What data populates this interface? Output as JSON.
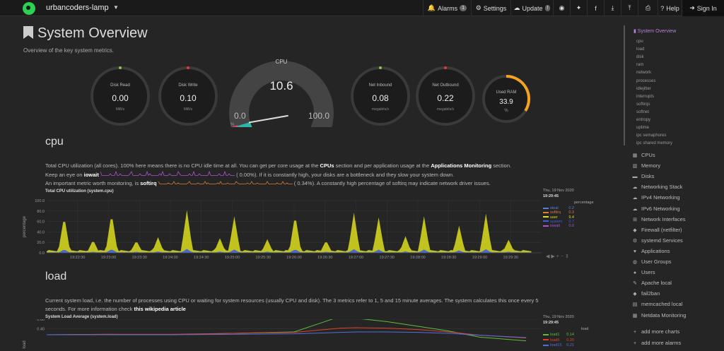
{
  "topbar": {
    "hostname": "urbancoders-lamp",
    "buttons": [
      {
        "icon": "bell-icon",
        "glyph": "🔔",
        "label": "Alarms",
        "badge": "1"
      },
      {
        "icon": "gear-icon",
        "glyph": "⚙",
        "label": "Settings",
        "badge": ""
      },
      {
        "icon": "cloud-download-icon",
        "glyph": "☁",
        "label": "Update",
        "badge": "!"
      },
      {
        "icon": "github-icon",
        "glyph": "◉",
        "label": "",
        "badge": ""
      },
      {
        "icon": "twitter-icon",
        "glyph": "✦",
        "label": "",
        "badge": ""
      },
      {
        "icon": "facebook-icon",
        "glyph": "f",
        "label": "",
        "badge": ""
      },
      {
        "icon": "download-icon",
        "glyph": "⤓",
        "label": "",
        "badge": ""
      },
      {
        "icon": "upload-icon",
        "glyph": "⤒",
        "label": "",
        "badge": ""
      },
      {
        "icon": "print-icon",
        "glyph": "⎙",
        "label": "",
        "badge": ""
      },
      {
        "icon": "help-icon",
        "glyph": "?",
        "label": "Help",
        "badge": ""
      },
      {
        "icon": "sign-in-icon",
        "glyph": "➜",
        "label": "Sign In",
        "badge": ""
      }
    ]
  },
  "page": {
    "title": "System Overview",
    "subtitle": "Overview of the key system metrics."
  },
  "gauges": {
    "disk_read": {
      "title": "Disk Read",
      "value": "0.00",
      "unit": "MiB/s"
    },
    "disk_write": {
      "title": "Disk Write",
      "value": "0.10",
      "unit": "MiB/s"
    },
    "cpu": {
      "title": "CPU",
      "value": "10.6",
      "min": "0.0",
      "max": "100.0",
      "unit": "%",
      "fraction": 0.106
    },
    "net_inbound": {
      "title": "Net Inbound",
      "value": "0.08",
      "unit": "megabits/s"
    },
    "net_outbound": {
      "title": "Net Outbound",
      "value": "0.22",
      "unit": "megabits/s"
    },
    "used_ram": {
      "title": "Used RAM",
      "value": "33.9",
      "unit": "%",
      "fraction": 0.339
    }
  },
  "cpu_section": {
    "title": "cpu",
    "line1_pre": "Total CPU utilization (all cores). 100% here means there is no CPU idle time at all. You can get per core usage at the ",
    "line1_link1": "CPUs",
    "line1_mid": " section and per application usage at the ",
    "line1_link2": "Applications Monitoring",
    "line1_post": " section.",
    "line2_pre": "Keep an eye on ",
    "line2_bold": "iowait",
    "line2_val": "0.00%). If it is constantly high, your disks are a bottleneck and they slow your system down.",
    "line3_pre": "An important metric worth monitoring, is ",
    "line3_bold": "softirq",
    "line3_val": "0.34%). A constantly high percentage of softirq may indicate network driver issues.",
    "chart_title": "Total CPU utilization (system.cpu)",
    "date": "Thu, 19 Nov 2020",
    "time": "19:29:45",
    "units": "percentage",
    "ylabel": "percentage",
    "legend": [
      {
        "name": "steal",
        "value": "0.2",
        "color": "#5b7fe0"
      },
      {
        "name": "softirq",
        "value": "0.3",
        "color": "#e07b30"
      },
      {
        "name": "user",
        "value": "9.4",
        "color": "#dede1e"
      },
      {
        "name": "system",
        "value": "0.7",
        "color": "#3f5fd8"
      },
      {
        "name": "iowait",
        "value": "0.0",
        "color": "#b24fd8"
      }
    ]
  },
  "load_section": {
    "title": "load",
    "line1": "Current system load, i.e. the number of processes using CPU or waiting for system resources (usually CPU and disk). The 3 metrics refer to 1, 5 and 15 minute averages. The system calculates this once every 5",
    "line2_pre": "seconds. For more information check ",
    "line2_link": "this wikipedia article",
    "chart_title": "System Load Average (system.load)",
    "date": "Thu, 19 Nov 2020",
    "time": "19:29:45",
    "units": "load",
    "ylabel": "load",
    "legend": [
      {
        "name": "load1",
        "value": "0.14",
        "color": "#57c13a"
      },
      {
        "name": "load5",
        "value": "0.20",
        "color": "#e0402c"
      },
      {
        "name": "load15",
        "value": "0.21",
        "color": "#4f6fe0"
      }
    ]
  },
  "chart_data": [
    {
      "type": "area",
      "title": "Total CPU utilization (system.cpu)",
      "ylabel": "percentage",
      "ylim": [
        0,
        100
      ],
      "y_ticks": [
        "100.0",
        "80.0",
        "60.0",
        "40.0",
        "20.0",
        "0.0"
      ],
      "x_ticks": [
        "19:22:30",
        "19:23:00",
        "19:23:30",
        "19:24:00",
        "19:24:30",
        "19:25:00",
        "19:25:30",
        "19:26:00",
        "19:26:30",
        "19:27:00",
        "19:27:30",
        "19:28:00",
        "19:28:30",
        "19:29:00",
        "19:29:30"
      ],
      "spikes": [
        {
          "x": "19:22:17",
          "user": 71
        },
        {
          "x": "19:22:45",
          "user": 25
        },
        {
          "x": "19:23:03",
          "user": 77
        },
        {
          "x": "19:23:27",
          "user": 24
        },
        {
          "x": "19:23:48",
          "user": 30
        },
        {
          "x": "19:24:16",
          "user": 82
        },
        {
          "x": "19:24:48",
          "user": 28
        },
        {
          "x": "19:25:02",
          "user": 70
        },
        {
          "x": "19:25:34",
          "user": 26
        },
        {
          "x": "19:26:01",
          "user": 74
        },
        {
          "x": "19:26:31",
          "user": 24
        },
        {
          "x": "19:26:58",
          "user": 77
        },
        {
          "x": "19:27:22",
          "user": 68
        },
        {
          "x": "19:27:48",
          "user": 32
        },
        {
          "x": "19:28:06",
          "user": 70
        },
        {
          "x": "19:28:40",
          "user": 52
        },
        {
          "x": "19:29:06",
          "user": 75
        },
        {
          "x": "19:29:28",
          "user": 25
        }
      ],
      "baseline_user": 3
    },
    {
      "type": "line",
      "title": "System Load Average (system.load)",
      "ylabel": "load",
      "y_ticks": [
        "0.60",
        "0.40"
      ],
      "x": [
        "19:22:00",
        "19:23:00",
        "19:24:00",
        "19:25:00",
        "19:26:00",
        "19:26:30",
        "19:26:45",
        "19:27:00",
        "19:27:30",
        "19:28:00",
        "19:28:30",
        "19:29:00",
        "19:29:45"
      ],
      "series": [
        {
          "name": "load1",
          "values": [
            0.27,
            0.28,
            0.27,
            0.3,
            0.33,
            0.55,
            0.66,
            0.62,
            0.55,
            0.45,
            0.35,
            0.22,
            0.14
          ]
        },
        {
          "name": "load5",
          "values": [
            0.27,
            0.28,
            0.28,
            0.3,
            0.32,
            0.38,
            0.41,
            0.42,
            0.41,
            0.38,
            0.33,
            0.26,
            0.2
          ]
        },
        {
          "name": "load15",
          "values": [
            0.27,
            0.27,
            0.27,
            0.28,
            0.29,
            0.31,
            0.32,
            0.33,
            0.33,
            0.32,
            0.3,
            0.26,
            0.21
          ]
        }
      ]
    }
  ],
  "sidebar": {
    "top": "System Overview",
    "sub": [
      "cpu",
      "load",
      "disk",
      "ram",
      "network",
      "processes",
      "idlejitter",
      "interrupts",
      "softirqs",
      "softnet",
      "entropy",
      "uptime",
      "ipc semaphores",
      "ipc shared memory"
    ],
    "main": [
      {
        "label": "CPUs",
        "icon": "microchip-icon",
        "glyph": "▦"
      },
      {
        "label": "Memory",
        "icon": "memory-icon",
        "glyph": "▥"
      },
      {
        "label": "Disks",
        "icon": "hdd-icon",
        "glyph": "▬"
      },
      {
        "label": "Networking Stack",
        "icon": "cloud-icon",
        "glyph": "☁"
      },
      {
        "label": "IPv4 Networking",
        "icon": "cloud-icon",
        "glyph": "☁"
      },
      {
        "label": "IPv6 Networking",
        "icon": "cloud-icon",
        "glyph": "☁"
      },
      {
        "label": "Network Interfaces",
        "icon": "sitemap-icon",
        "glyph": "⊞"
      },
      {
        "label": "Firewall (netfilter)",
        "icon": "shield-icon",
        "glyph": "◆"
      },
      {
        "label": "systemd Services",
        "icon": "cogs-icon",
        "glyph": "⚙"
      },
      {
        "label": "Applications",
        "icon": "heart-icon",
        "glyph": "♥"
      },
      {
        "label": "User Groups",
        "icon": "users-icon",
        "glyph": "◍"
      },
      {
        "label": "Users",
        "icon": "user-icon",
        "glyph": "●"
      },
      {
        "label": "Apache local",
        "icon": "feather-icon",
        "glyph": "✎"
      },
      {
        "label": "fail2ban",
        "icon": "shield-icon",
        "glyph": "◆"
      },
      {
        "label": "memcached local",
        "icon": "database-icon",
        "glyph": "▤"
      },
      {
        "label": "Netdata Monitoring",
        "icon": "chart-icon",
        "glyph": "▦"
      }
    ],
    "links": [
      {
        "label": "add more charts",
        "icon": "plus-icon",
        "glyph": "+"
      },
      {
        "label": "add more alarms",
        "icon": "plus-icon",
        "glyph": "+"
      }
    ]
  }
}
